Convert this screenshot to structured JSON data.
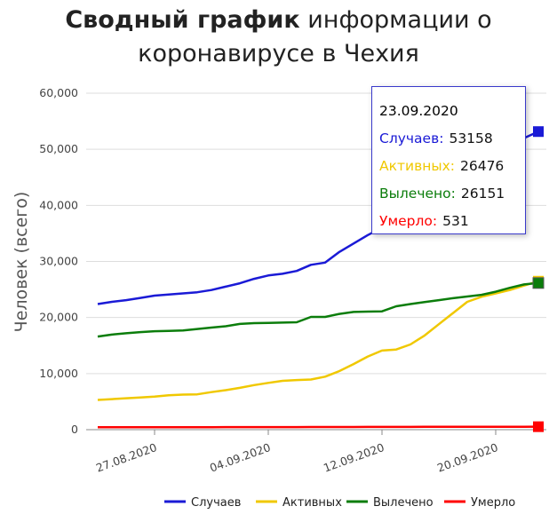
{
  "title": {
    "bold": "Сводный график",
    "line1_rest": " информации о",
    "line2": "коронавирусе в Чехия"
  },
  "tooltip": {
    "date": "23.09.2020",
    "rows": [
      {
        "label": "Случаев:",
        "value": "53158",
        "color": "#1a1ad6"
      },
      {
        "label": "Активных:",
        "value": "26476",
        "color": "#f0c800"
      },
      {
        "label": "Вылечено:",
        "value": "26151",
        "color": "#0b7d0b"
      },
      {
        "label": "Умерло:",
        "value": "531",
        "color": "#ff0000"
      }
    ]
  },
  "chart_data": {
    "type": "line",
    "ylabel": "Человек (всего)",
    "ylim": [
      0,
      60000
    ],
    "yticks": [
      "0",
      "10,000",
      "20,000",
      "30,000",
      "40,000",
      "50,000",
      "60,000"
    ],
    "xlim": [
      "2020-08-23",
      "2020-09-23"
    ],
    "xticks": [
      {
        "label": "27.08.2020",
        "date": "2020-08-27"
      },
      {
        "label": "04.09.2020",
        "date": "2020-09-04"
      },
      {
        "label": "12.09.2020",
        "date": "2020-09-12"
      },
      {
        "label": "20.09.2020",
        "date": "2020-09-20"
      }
    ],
    "grid": true,
    "legend": "bottom",
    "x": [
      "2020-08-23",
      "2020-08-24",
      "2020-08-25",
      "2020-08-26",
      "2020-08-27",
      "2020-08-28",
      "2020-08-29",
      "2020-08-30",
      "2020-08-31",
      "2020-09-01",
      "2020-09-02",
      "2020-09-03",
      "2020-09-04",
      "2020-09-05",
      "2020-09-06",
      "2020-09-07",
      "2020-09-08",
      "2020-09-09",
      "2020-09-10",
      "2020-09-11",
      "2020-09-12",
      "2020-09-13",
      "2020-09-14",
      "2020-09-15",
      "2020-09-16",
      "2020-09-17",
      "2020-09-18",
      "2020-09-19",
      "2020-09-20",
      "2020-09-21",
      "2020-09-22",
      "2020-09-23"
    ],
    "series": [
      {
        "name": "Случаев",
        "color": "#1a1ad6",
        "values": [
          22400,
          22800,
          23100,
          23500,
          23900,
          24100,
          24300,
          24500,
          24900,
          25500,
          26100,
          26900,
          27500,
          27800,
          28300,
          29400,
          29800,
          31700,
          33200,
          34700,
          36000,
          36600,
          37200,
          38600,
          40400,
          42600,
          45000,
          46500,
          48200,
          50500,
          52000,
          53158
        ]
      },
      {
        "name": "Активных",
        "color": "#f0c800",
        "values": [
          5300,
          5450,
          5600,
          5750,
          5900,
          6150,
          6250,
          6300,
          6700,
          7050,
          7450,
          7950,
          8350,
          8700,
          8850,
          8950,
          9450,
          10450,
          11700,
          13050,
          14100,
          14300,
          15200,
          16800,
          18800,
          20800,
          22800,
          23700,
          24300,
          24900,
          25700,
          26476
        ]
      },
      {
        "name": "Вылечено",
        "color": "#0b7d0b",
        "values": [
          16600,
          16950,
          17200,
          17400,
          17550,
          17600,
          17700,
          17950,
          18200,
          18450,
          18850,
          19000,
          19050,
          19100,
          19150,
          20100,
          20100,
          20650,
          21000,
          21050,
          21100,
          22000,
          22400,
          22750,
          23100,
          23450,
          23750,
          24050,
          24600,
          25300,
          25900,
          26151
        ]
      },
      {
        "name": "Умерло",
        "color": "#ff0000",
        "values": [
          420,
          424,
          428,
          432,
          436,
          440,
          443,
          446,
          449,
          452,
          455,
          458,
          461,
          464,
          467,
          470,
          474,
          478,
          482,
          486,
          490,
          494,
          498,
          502,
          506,
          510,
          514,
          518,
          522,
          525,
          528,
          531
        ]
      }
    ]
  }
}
